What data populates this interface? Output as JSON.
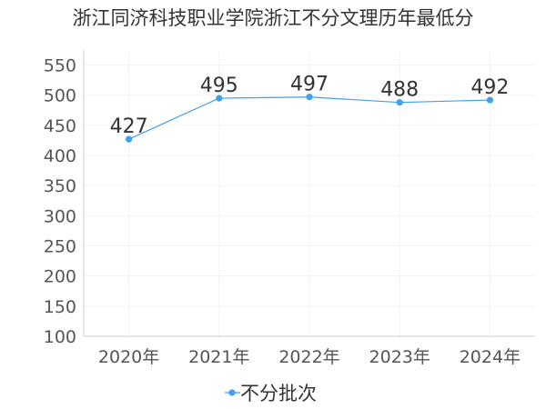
{
  "chart_data": {
    "type": "line",
    "title": "浙江同济科技职业学院浙江不分文理历年最低分",
    "categories": [
      "2020年",
      "2021年",
      "2022年",
      "2023年",
      "2024年"
    ],
    "series": [
      {
        "name": "不分批次",
        "values": [
          427,
          495,
          497,
          488,
          492
        ]
      }
    ],
    "xlabel": "",
    "ylabel": "",
    "ylim": [
      100,
      575
    ],
    "yticks": [
      100,
      150,
      200,
      250,
      300,
      350,
      400,
      450,
      500,
      550
    ],
    "grid": true,
    "legend": "bottom-center",
    "colors": {
      "series": "#3fa0f0",
      "axis": "#cccccc",
      "grid": "#f3f3f3"
    }
  }
}
